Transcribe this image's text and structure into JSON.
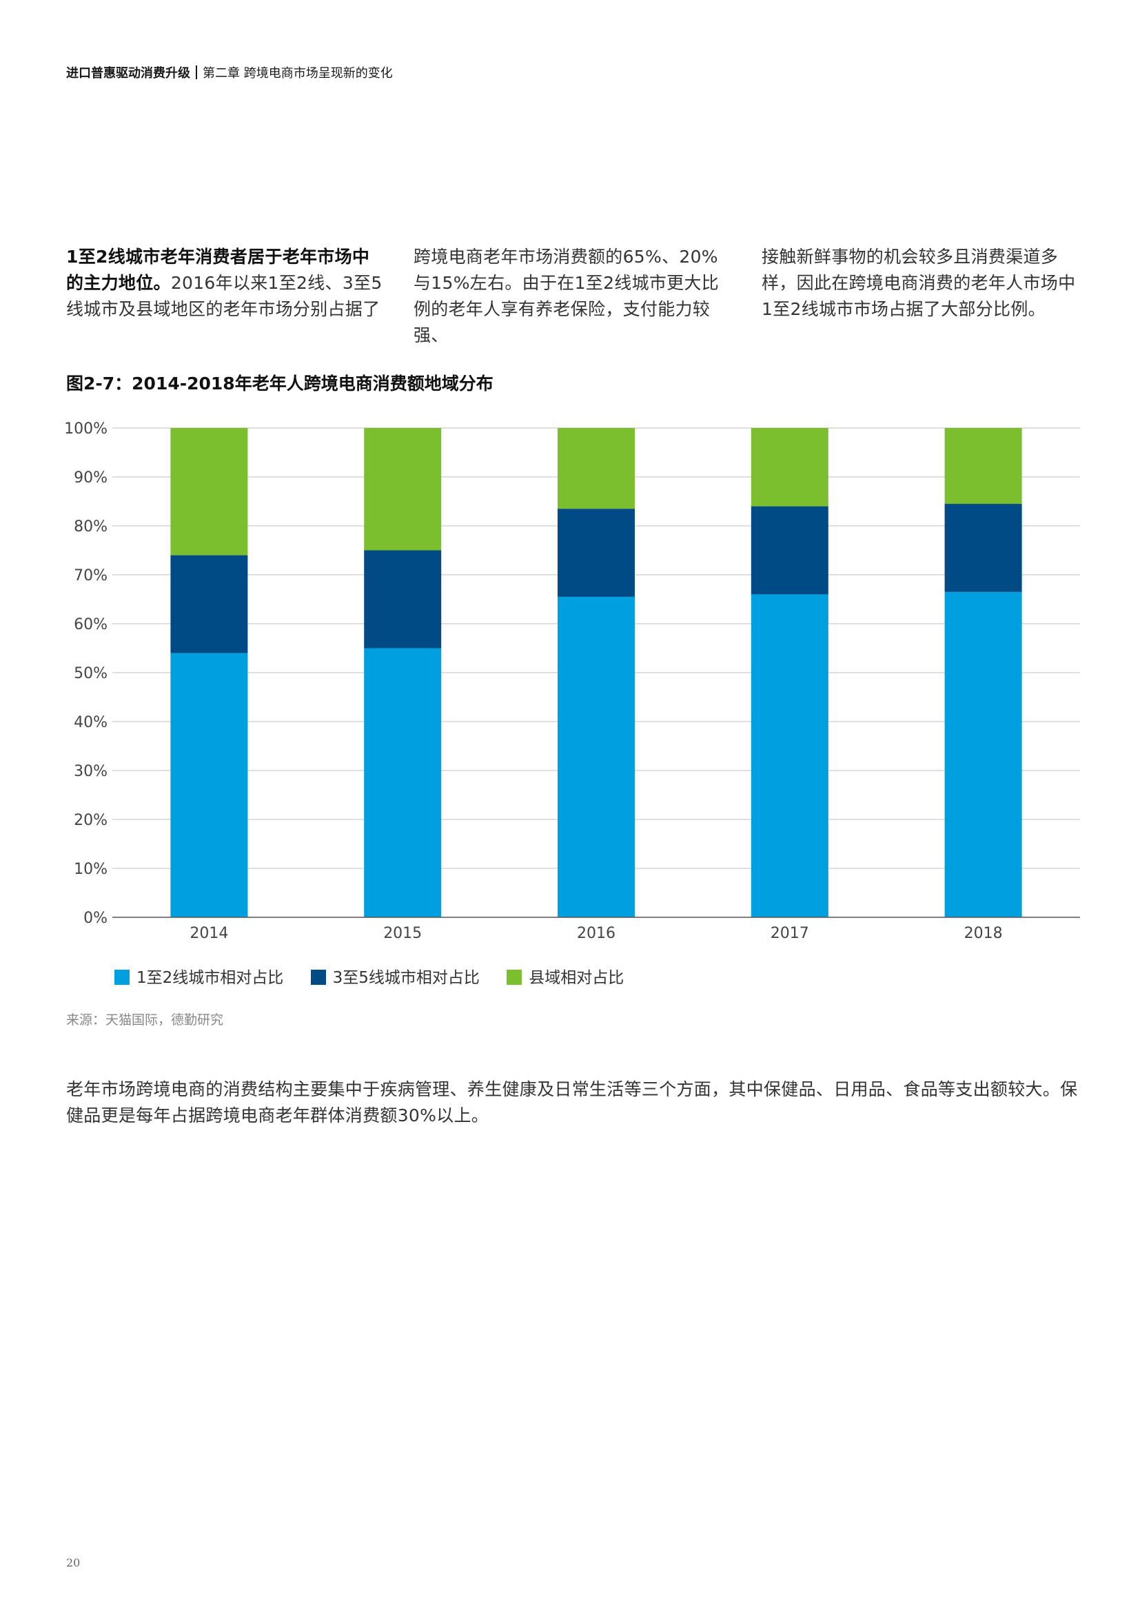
{
  "header": {
    "report_title": "进口普惠驱动消费升级",
    "chapter": "第二章 跨境电商市场呈现新的变化"
  },
  "intro": {
    "lead_bold": "1至2线城市老年消费者居于老年市场中的主力地位。",
    "col1_rest": "2016年以来1至2线、3至5线城市及县域地区的老年市场分别占据了",
    "col2": "跨境电商老年市场消费额的65%、20%与15%左右。由于在1至2线城市更大比例的老年人享有养老保险，支付能力较强、",
    "col3": "接触新鲜事物的机会较多且消费渠道多样，因此在跨境电商消费的老年人市场中1至2线城市市场占据了大部分比例。"
  },
  "figure_title": "图2-7：2014-2018年老年人跨境电商消费额地域分布",
  "chart_data": {
    "type": "bar",
    "stacked": true,
    "title": "图2-7：2014-2018年老年人跨境电商消费额地域分布",
    "categories": [
      "2014",
      "2015",
      "2016",
      "2017",
      "2018"
    ],
    "series": [
      {
        "name": "1至2线城市相对占比",
        "color": "#00A0E0",
        "values": [
          54,
          55,
          65.5,
          66,
          66.5
        ]
      },
      {
        "name": "3至5线城市相对占比",
        "color": "#004A86",
        "values": [
          20,
          20,
          18,
          18,
          18
        ]
      },
      {
        "name": "县域相对占比",
        "color": "#7CBF2E",
        "values": [
          26,
          25,
          16.5,
          16,
          15.5
        ]
      }
    ],
    "ylim": [
      0,
      100
    ],
    "yticks": [
      "0%",
      "10%",
      "20%",
      "30%",
      "40%",
      "50%",
      "60%",
      "70%",
      "80%",
      "90%",
      "100%"
    ],
    "grid": true,
    "legend_position": "bottom-left"
  },
  "source": "来源：天猫国际，德勤研究",
  "body_text": "老年市场跨境电商的消费结构主要集中于疾病管理、养生健康及日常生活等三个方面，其中保健品、日用品、食品等支出额较大。保健品更是每年占据跨境电商老年群体消费额30%以上。",
  "page_number": "20"
}
